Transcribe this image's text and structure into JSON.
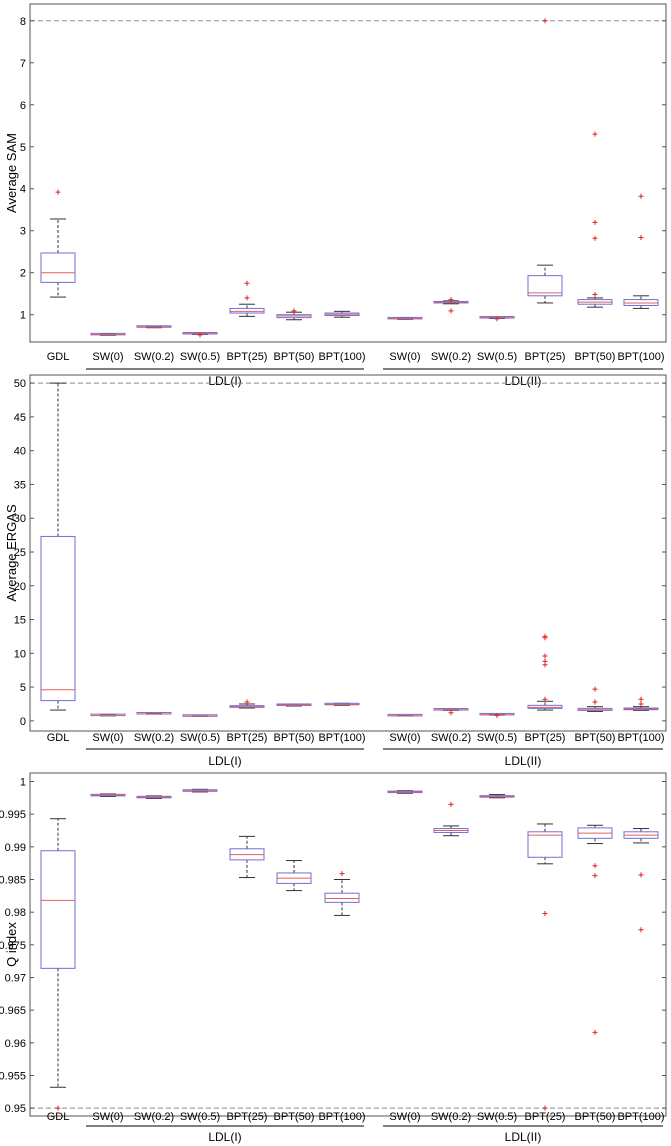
{
  "colors": {
    "box": "#6f6fd8",
    "median": "#e0605a",
    "whisker": "#333333",
    "outlier": "#e02020",
    "frame": "#555555",
    "refline": "#888888",
    "text": "#000000"
  },
  "chart_data": [
    {
      "type": "box",
      "ylabel": "Average SAM",
      "ylim": [
        0.35,
        8.4
      ],
      "yticks": [
        1,
        2,
        3,
        4,
        5,
        6,
        7,
        8
      ],
      "yticklabels": [
        "1",
        "2",
        "3",
        "4",
        "5",
        "6",
        "7",
        "8"
      ],
      "reference_line": 8,
      "categories": [
        "GDL",
        "SW(0)",
        "SW(0.2)",
        "SW(0.5)",
        "BPT(25)",
        "BPT(50)",
        "BPT(100)",
        "SW(0)",
        "SW(0.2)",
        "SW(0.5)",
        "BPT(25)",
        "BPT(50)",
        "BPT(100)"
      ],
      "groups": [
        {
          "label": "LDL(I)",
          "from": 1,
          "to": 6
        },
        {
          "label": "LDL(II)",
          "from": 7,
          "to": 12
        }
      ],
      "boxes": [
        {
          "min": 1.42,
          "q1": 1.77,
          "median": 2.0,
          "q3": 2.47,
          "max": 3.28,
          "outliers": [
            3.92
          ]
        },
        {
          "min": 0.51,
          "q1": 0.52,
          "median": 0.53,
          "q3": 0.54,
          "max": 0.55,
          "outliers": []
        },
        {
          "min": 0.69,
          "q1": 0.7,
          "median": 0.71,
          "q3": 0.72,
          "max": 0.73,
          "outliers": []
        },
        {
          "min": 0.53,
          "q1": 0.54,
          "median": 0.55,
          "q3": 0.56,
          "max": 0.57,
          "outliers": [
            0.52,
            0.53
          ]
        },
        {
          "min": 0.96,
          "q1": 1.04,
          "median": 1.08,
          "q3": 1.15,
          "max": 1.25,
          "outliers": [
            1.4,
            1.75
          ]
        },
        {
          "min": 0.88,
          "q1": 0.93,
          "median": 0.97,
          "q3": 1.0,
          "max": 1.06,
          "outliers": [
            1.09
          ]
        },
        {
          "min": 0.94,
          "q1": 0.98,
          "median": 1.01,
          "q3": 1.04,
          "max": 1.08,
          "outliers": []
        },
        {
          "min": 0.89,
          "q1": 0.9,
          "median": 0.91,
          "q3": 0.92,
          "max": 0.93,
          "outliers": []
        },
        {
          "min": 1.26,
          "q1": 1.28,
          "median": 1.3,
          "q3": 1.31,
          "max": 1.33,
          "outliers": [
            1.09,
            1.36
          ]
        },
        {
          "min": 0.91,
          "q1": 0.92,
          "median": 0.93,
          "q3": 0.94,
          "max": 0.95,
          "outliers": [
            0.9
          ]
        },
        {
          "min": 1.28,
          "q1": 1.45,
          "median": 1.52,
          "q3": 1.93,
          "max": 2.18,
          "outliers": [
            8.0
          ]
        },
        {
          "min": 1.18,
          "q1": 1.25,
          "median": 1.3,
          "q3": 1.36,
          "max": 1.4,
          "outliers": [
            1.48,
            2.82,
            3.2,
            5.3
          ]
        },
        {
          "min": 1.15,
          "q1": 1.22,
          "median": 1.28,
          "q3": 1.36,
          "max": 1.45,
          "outliers": [
            2.84,
            3.82
          ]
        }
      ]
    },
    {
      "type": "box",
      "ylabel": "Average ERGAS",
      "ylim": [
        -1.5,
        51.2
      ],
      "yticks": [
        0,
        5,
        10,
        15,
        20,
        25,
        30,
        35,
        40,
        45,
        50
      ],
      "yticklabels": [
        "0",
        "5",
        "10",
        "15",
        "20",
        "25",
        "30",
        "35",
        "40",
        "45",
        "50"
      ],
      "reference_line": 50,
      "categories": [
        "GDL",
        "SW(0)",
        "SW(0.2)",
        "SW(0.5)",
        "BPT(25)",
        "BPT(50)",
        "BPT(100)",
        "SW(0)",
        "SW(0.2)",
        "SW(0.5)",
        "BPT(25)",
        "BPT(50)",
        "BPT(100)"
      ],
      "groups": [
        {
          "label": "LDL(I)",
          "from": 1,
          "to": 6
        },
        {
          "label": "LDL(II)",
          "from": 7,
          "to": 12
        }
      ],
      "boxes": [
        {
          "min": 1.6,
          "q1": 3.0,
          "median": 4.6,
          "q3": 27.3,
          "max": 50,
          "outliers": []
        },
        {
          "min": 0.75,
          "q1": 0.78,
          "median": 0.8,
          "q3": 0.82,
          "max": 0.85,
          "outliers": []
        },
        {
          "min": 1.0,
          "q1": 1.02,
          "median": 1.04,
          "q3": 1.06,
          "max": 1.08,
          "outliers": []
        },
        {
          "min": 0.66,
          "q1": 0.68,
          "median": 0.7,
          "q3": 0.72,
          "max": 0.74,
          "outliers": []
        },
        {
          "min": 1.9,
          "q1": 2.0,
          "median": 2.1,
          "q3": 2.25,
          "max": 2.5,
          "outliers": [
            2.8
          ]
        },
        {
          "min": 2.2,
          "q1": 2.28,
          "median": 2.35,
          "q3": 2.42,
          "max": 2.5,
          "outliers": []
        },
        {
          "min": 2.3,
          "q1": 2.38,
          "median": 2.45,
          "q3": 2.52,
          "max": 2.6,
          "outliers": []
        },
        {
          "min": 0.72,
          "q1": 0.74,
          "median": 0.76,
          "q3": 0.78,
          "max": 0.8,
          "outliers": []
        },
        {
          "min": 1.55,
          "q1": 1.6,
          "median": 1.65,
          "q3": 1.7,
          "max": 1.8,
          "outliers": [
            1.2
          ]
        },
        {
          "min": 0.85,
          "q1": 0.88,
          "median": 0.9,
          "q3": 0.92,
          "max": 0.95,
          "outliers": [
            0.8
          ]
        },
        {
          "min": 1.6,
          "q1": 1.85,
          "median": 2.0,
          "q3": 2.3,
          "max": 2.9,
          "outliers": [
            3.2,
            8.3,
            8.8,
            9.6,
            12.3,
            12.5
          ]
        },
        {
          "min": 1.4,
          "q1": 1.55,
          "median": 1.65,
          "q3": 1.85,
          "max": 2.1,
          "outliers": [
            2.8,
            4.7
          ]
        },
        {
          "min": 1.55,
          "q1": 1.65,
          "median": 1.75,
          "q3": 1.9,
          "max": 2.1,
          "outliers": [
            2.5,
            3.2
          ]
        }
      ]
    },
    {
      "type": "box",
      "ylabel": "Q index",
      "ylim": [
        0.9488,
        1.0013
      ],
      "yticks": [
        0.95,
        0.955,
        0.96,
        0.965,
        0.97,
        0.975,
        0.98,
        0.985,
        0.99,
        0.995,
        1
      ],
      "yticklabels": [
        "0.95",
        "0.955",
        "0.96",
        "0.965",
        "0.97",
        "0.975",
        "0.98",
        "0.985",
        "0.99",
        "0.995",
        "1"
      ],
      "reference_line": 0.95,
      "categories": [
        "GDL",
        "SW(0)",
        "SW(0.2)",
        "SW(0.5)",
        "BPT(25)",
        "BPT(50)",
        "BPT(100)",
        "SW(0)",
        "SW(0.2)",
        "SW(0.5)",
        "BPT(25)",
        "BPT(50)",
        "BPT(100)"
      ],
      "groups": [
        {
          "label": "LDL(I)",
          "from": 1,
          "to": 6
        },
        {
          "label": "LDL(II)",
          "from": 7,
          "to": 12
        }
      ],
      "boxes": [
        {
          "min": 0.9532,
          "q1": 0.9714,
          "median": 0.9818,
          "q3": 0.9894,
          "max": 0.9943,
          "outliers": [
            0.95
          ]
        },
        {
          "min": 0.9977,
          "q1": 0.9978,
          "median": 0.9979,
          "q3": 0.998,
          "max": 0.9981,
          "outliers": []
        },
        {
          "min": 0.9974,
          "q1": 0.9975,
          "median": 0.9976,
          "q3": 0.9977,
          "max": 0.9978,
          "outliers": []
        },
        {
          "min": 0.9984,
          "q1": 0.9985,
          "median": 0.9986,
          "q3": 0.9987,
          "max": 0.9988,
          "outliers": []
        },
        {
          "min": 0.9853,
          "q1": 0.988,
          "median": 0.9888,
          "q3": 0.9897,
          "max": 0.9916,
          "outliers": []
        },
        {
          "min": 0.9833,
          "q1": 0.9844,
          "median": 0.9852,
          "q3": 0.986,
          "max": 0.9879,
          "outliers": []
        },
        {
          "min": 0.9795,
          "q1": 0.9815,
          "median": 0.9821,
          "q3": 0.9829,
          "max": 0.985,
          "outliers": [
            0.9859
          ]
        },
        {
          "min": 0.9982,
          "q1": 0.9983,
          "median": 0.9984,
          "q3": 0.9985,
          "max": 0.9986,
          "outliers": []
        },
        {
          "min": 0.9917,
          "q1": 0.9922,
          "median": 0.9925,
          "q3": 0.9928,
          "max": 0.9932,
          "outliers": [
            0.9965
          ]
        },
        {
          "min": 0.9975,
          "q1": 0.9976,
          "median": 0.9977,
          "q3": 0.9978,
          "max": 0.998,
          "outliers": []
        },
        {
          "min": 0.9874,
          "q1": 0.9884,
          "median": 0.9918,
          "q3": 0.9923,
          "max": 0.9935,
          "outliers": [
            0.9798,
            0.95
          ]
        },
        {
          "min": 0.9905,
          "q1": 0.9913,
          "median": 0.9921,
          "q3": 0.9929,
          "max": 0.9933,
          "outliers": [
            0.9871,
            0.9856,
            0.9616
          ]
        },
        {
          "min": 0.9906,
          "q1": 0.9913,
          "median": 0.9918,
          "q3": 0.9923,
          "max": 0.9928,
          "outliers": [
            0.9857,
            0.9773
          ]
        }
      ]
    }
  ]
}
